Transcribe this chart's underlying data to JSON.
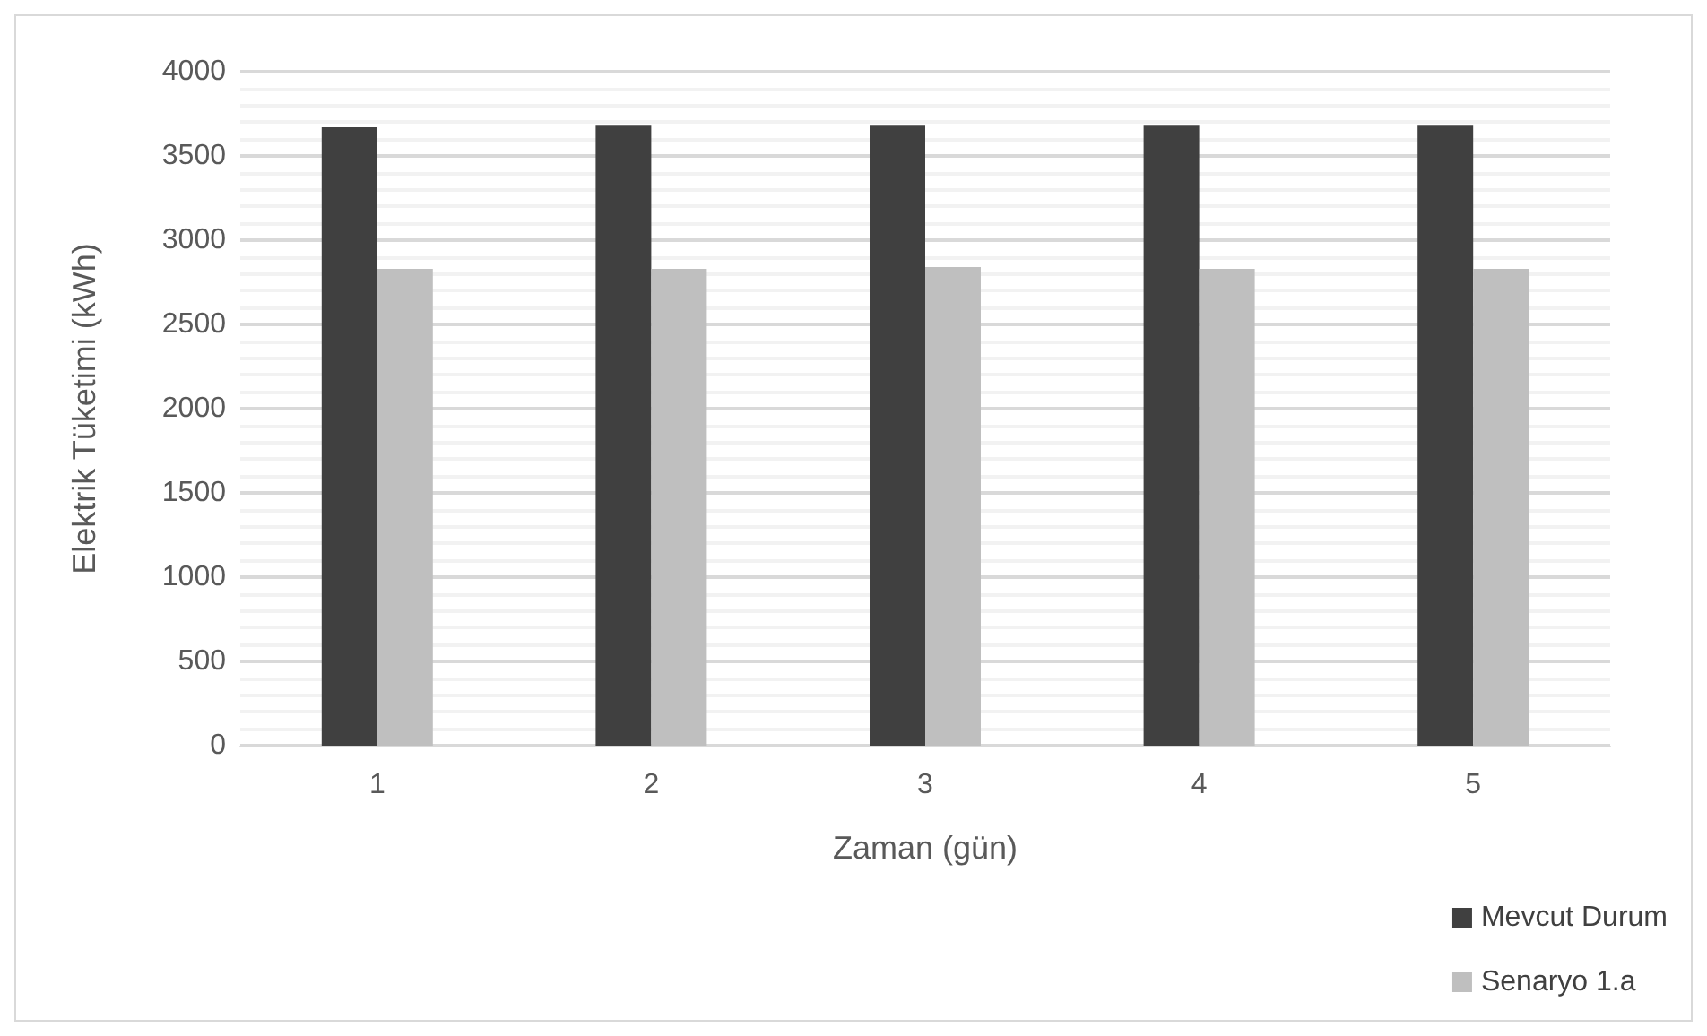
{
  "chart_data": {
    "type": "bar",
    "xlabel": "Zaman (gün)",
    "ylabel": "Elektrik Tüketimi (kWh)",
    "categories": [
      "1",
      "2",
      "3",
      "4",
      "5"
    ],
    "series": [
      {
        "name": "Mevcut Durum",
        "color": "#404040",
        "values": [
          3670,
          3680,
          3680,
          3680,
          3680
        ]
      },
      {
        "name": "Senaryo 1.a",
        "color": "#bfbfbf",
        "values": [
          2830,
          2830,
          2840,
          2830,
          2830
        ]
      }
    ],
    "ylim": [
      0,
      4000
    ],
    "yticks": [
      0,
      500,
      1000,
      1500,
      2000,
      2500,
      3000,
      3500,
      4000
    ],
    "grid": "y",
    "legend": "bottom right"
  }
}
